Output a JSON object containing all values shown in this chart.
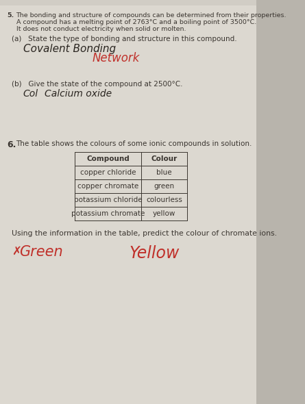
{
  "bg_color": "#b8b4ac",
  "page_bg": "#d8d4cc",
  "header_number": "5.",
  "header_line1": "The bonding and structure of compounds can be determined from their properties.",
  "header_line2": "A compound has a melting point of 2763°C and a boiling point of 3500°C.",
  "header_line3": "It does not conduct electricity when solid or molten.",
  "part_a_label": "(a)   State the type of bonding and structure in this compound.",
  "part_a_handwrite1": "Covalent Bonding",
  "part_a_handwrite2": "Network",
  "part_b_label": "(b)   Give the state of the compound at 2500°C.",
  "part_b_handwrite1": "Col",
  "part_b_handwrite2": "Calcium oxide",
  "section6_number": "6.",
  "section6_text": "The table shows the colours of some ionic compounds in solution.",
  "table_header_col1": "Compound",
  "table_header_col2": "Colour",
  "table_rows": [
    [
      "copper chloride",
      "blue"
    ],
    [
      "copper chromate",
      "green"
    ],
    [
      "potassium chloride",
      "colourless"
    ],
    [
      "potassium chromate",
      "yellow"
    ]
  ],
  "predict_text": "Using the information in the table, predict the colour of chromate ions.",
  "answer_wrong_mark": "✗",
  "answer_wrong_text": "Green",
  "answer_correct": "Yellow",
  "print_color": "#3a3530",
  "hand_black": "#2a2520",
  "hand_red": "#c0302a",
  "table_line_color": "#3a3530",
  "header_fs": 6.8,
  "label_fs": 7.5,
  "hand_fs_a": 11,
  "hand_fs_b": 10,
  "table_fs": 7.5,
  "predict_fs": 7.8,
  "answer_fs": 15
}
